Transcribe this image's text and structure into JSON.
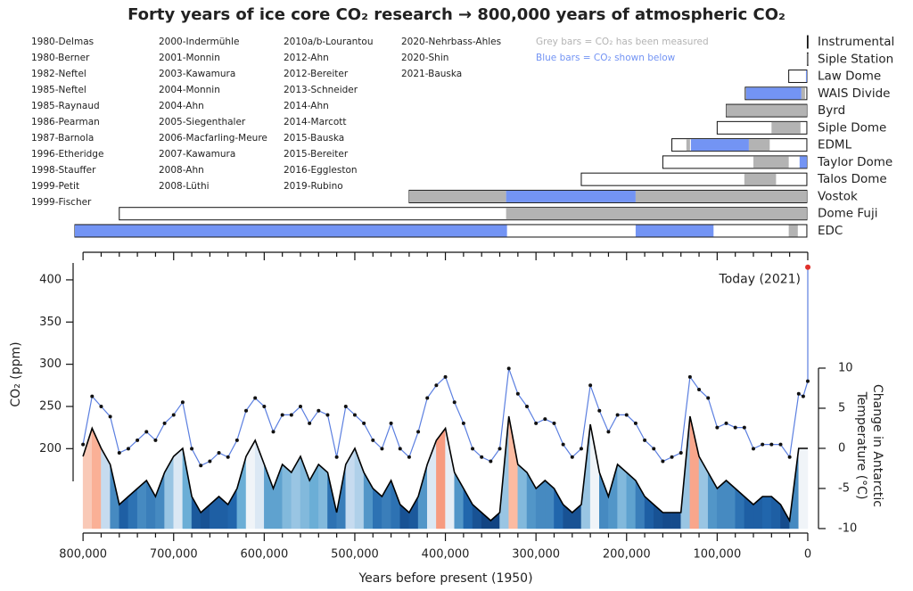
{
  "chart_data": {
    "type": "line",
    "title": "Forty years of ice core CO₂ research → 800,000 years of atmospheric CO₂",
    "references": [
      [
        "1980-Delmas",
        "1980-Berner",
        "1982-Neftel",
        "1985-Neftel",
        "1985-Raynaud",
        "1986-Pearman",
        "1987-Barnola",
        "1996-Etheridge",
        "1998-Stauffer",
        "1999-Petit",
        "1999-Fischer"
      ],
      [
        "2000-Indermühle",
        "2001-Monnin",
        "2003-Kawamura",
        "2004-Monnin",
        "2004-Ahn",
        "2005-Siegenthaler",
        "2006-Macfarling-Meure",
        "2007-Kawamura",
        "2008-Ahn",
        "2008-Lüthi"
      ],
      [
        "2010a/b-Lourantou",
        "2012-Ahn",
        "2012-Bereiter",
        "2013-Schneider",
        "2014-Ahn",
        "2014-Marcott",
        "2015-Bauska",
        "2015-Bereiter",
        "2016-Eggleston",
        "2019-Rubino"
      ],
      [
        "2020-Nehrbass-Ahles",
        "2020-Shin",
        "2021-Bauska"
      ]
    ],
    "bar_legend": [
      {
        "text": "Grey bars = CO₂ has been measured",
        "color": "#b3b3b3"
      },
      {
        "text": "Blue bars = CO₂ shown below",
        "color": "#7394f4"
      }
    ],
    "cores": [
      {
        "name": "Instrumental",
        "span": [
          -71,
          500
        ],
        "segments": []
      },
      {
        "name": "Siple Station",
        "span": [
          0,
          500
        ],
        "segments": [
          {
            "range": [
              0,
              500
            ],
            "color": "#b3b3b3"
          }
        ]
      },
      {
        "name": "Law Dome",
        "span": [
          1000,
          21000
        ],
        "segments": [
          {
            "range": [
              1000,
              2000
            ],
            "color": "#7394f4"
          }
        ]
      },
      {
        "name": "WAIS Divide",
        "span": [
          1000,
          69000
        ],
        "segments": [
          {
            "range": [
              7000,
              68000
            ],
            "color": "#7394f4"
          },
          {
            "range": [
              3000,
              7000
            ],
            "color": "#b3b3b3"
          }
        ]
      },
      {
        "name": "Byrd",
        "span": [
          1000,
          90000
        ],
        "segments": [
          {
            "range": [
              1000,
              90000
            ],
            "color": "#b3b3b3"
          }
        ]
      },
      {
        "name": "Siple Dome",
        "span": [
          1000,
          100000
        ],
        "segments": [
          {
            "range": [
              8000,
              40000
            ],
            "color": "#b3b3b3"
          }
        ]
      },
      {
        "name": "EDML",
        "span": [
          1000,
          150000
        ],
        "segments": [
          {
            "range": [
              130000,
              134000
            ],
            "color": "#b3b3b3"
          },
          {
            "range": [
              65000,
              129000
            ],
            "color": "#7394f4"
          },
          {
            "range": [
              42000,
              65000
            ],
            "color": "#b3b3b3"
          }
        ]
      },
      {
        "name": "Taylor Dome",
        "span": [
          1000,
          160000
        ],
        "segments": [
          {
            "range": [
              21000,
              60000
            ],
            "color": "#b3b3b3"
          },
          {
            "range": [
              1000,
              9000
            ],
            "color": "#7394f4"
          }
        ]
      },
      {
        "name": "Talos Dome",
        "span": [
          1000,
          250000
        ],
        "segments": [
          {
            "range": [
              35000,
              70000
            ],
            "color": "#b3b3b3"
          }
        ]
      },
      {
        "name": "Vostok",
        "span": [
          1000,
          440000
        ],
        "segments": [
          {
            "range": [
              333000,
              440000
            ],
            "color": "#b3b3b3"
          },
          {
            "range": [
              190000,
              333000
            ],
            "color": "#7394f4"
          },
          {
            "range": [
              1000,
              190000
            ],
            "color": "#b3b3b3"
          }
        ]
      },
      {
        "name": "Dome Fuji",
        "span": [
          1000,
          760000
        ],
        "segments": [
          {
            "range": [
              1000,
              333000
            ],
            "color": "#b3b3b3"
          }
        ]
      },
      {
        "name": "EDC",
        "span": [
          1000,
          809000
        ],
        "segments": [
          {
            "range": [
              332000,
              809000
            ],
            "color": "#7394f4"
          },
          {
            "range": [
              104000,
              190000
            ],
            "color": "#7394f4"
          },
          {
            "range": [
              11000,
              21000
            ],
            "color": "#b3b3b3"
          }
        ]
      }
    ],
    "xlabel": "Years before present (1950)",
    "ylabel": "CO₂ (ppm)",
    "y2label": [
      "Change in Antarctic",
      "Temperature (°C)"
    ],
    "annotation": {
      "text": "Today (2021)",
      "color": "#e0302a"
    },
    "xlim": [
      809000,
      -2000
    ],
    "xticks": [
      {
        "value": 800000,
        "label": "800,000"
      },
      {
        "value": 700000,
        "label": "700,000"
      },
      {
        "value": 600000,
        "label": "600,000"
      },
      {
        "value": 500000,
        "label": "500,000"
      },
      {
        "value": 400000,
        "label": "400,000"
      },
      {
        "value": 300000,
        "label": "300,000"
      },
      {
        "value": 200000,
        "label": "200,000"
      },
      {
        "value": 100000,
        "label": "100,000"
      },
      0
    ],
    "xminorticks": [
      780000,
      760000,
      740000,
      720000,
      680000,
      660000,
      640000,
      620000,
      580000,
      560000,
      540000,
      520000,
      480000,
      460000,
      440000,
      420000,
      380000,
      360000,
      340000,
      320000,
      280000,
      260000,
      240000,
      220000,
      180000,
      160000,
      140000,
      120000,
      80000,
      60000,
      40000,
      20000
    ],
    "ylim": [
      100,
      420
    ],
    "yticks": [
      200,
      250,
      300,
      350,
      400
    ],
    "y2lim": [
      -10.56,
      23.11
    ],
    "y2ticks": [
      -10,
      -5,
      0,
      5,
      10
    ],
    "x": [
      800000,
      790000,
      780000,
      770000,
      760000,
      750000,
      740000,
      730000,
      720000,
      710000,
      700000,
      690000,
      680000,
      670000,
      660000,
      650000,
      640000,
      630000,
      620000,
      610000,
      600000,
      590000,
      580000,
      570000,
      560000,
      550000,
      540000,
      530000,
      520000,
      510000,
      500000,
      490000,
      480000,
      470000,
      460000,
      450000,
      440000,
      430000,
      420000,
      410000,
      400000,
      390000,
      380000,
      370000,
      360000,
      350000,
      340000,
      330000,
      320000,
      310000,
      300000,
      290000,
      280000,
      270000,
      260000,
      250000,
      240000,
      230000,
      220000,
      210000,
      200000,
      190000,
      180000,
      170000,
      160000,
      150000,
      140000,
      130000,
      120000,
      110000,
      100000,
      90000,
      80000,
      70000,
      60000,
      50000,
      40000,
      30000,
      20000,
      10000,
      5000,
      0,
      -71
    ],
    "series": [
      {
        "color": "#5b7fe0",
        "marker_color": "#111111",
        "values": [
          205,
          262,
          250,
          238,
          195,
          200,
          210,
          220,
          210,
          230,
          240,
          255,
          200,
          180,
          185,
          195,
          190,
          210,
          245,
          260,
          250,
          220,
          240,
          240,
          250,
          230,
          245,
          240,
          190,
          250,
          240,
          230,
          210,
          200,
          230,
          200,
          190,
          220,
          260,
          275,
          285,
          255,
          230,
          200,
          190,
          185,
          200,
          295,
          265,
          250,
          230,
          235,
          230,
          205,
          190,
          200,
          275,
          245,
          220,
          240,
          240,
          230,
          210,
          200,
          185,
          190,
          195,
          285,
          270,
          260,
          225,
          230,
          225,
          225,
          200,
          205,
          205,
          205,
          190,
          265,
          262,
          280,
          415
        ]
      },
      {
        "axis": "y2",
        "color": "#000000",
        "values": [
          -1,
          2.5,
          0,
          -2,
          -7,
          -6,
          -5,
          -4,
          -6,
          -3,
          -1,
          0,
          -6,
          -8,
          -7,
          -6,
          -7,
          -5,
          -1,
          1,
          -2,
          -5,
          -2,
          -3,
          -1,
          -4,
          -2,
          -3,
          -8,
          -2,
          0,
          -3,
          -5,
          -6,
          -4,
          -7,
          -8,
          -6,
          -2,
          1,
          2.5,
          -3,
          -5,
          -7,
          -8,
          -9,
          -8,
          4,
          -2,
          -3,
          -5,
          -4,
          -5,
          -7,
          -8,
          -7,
          3,
          -3,
          -6,
          -2,
          -3,
          -4,
          -6,
          -7,
          -8,
          -8,
          -8,
          4,
          -1,
          -3,
          -5,
          -4,
          -5,
          -6,
          -7,
          -6,
          -6,
          -7,
          -9,
          0,
          0,
          0,
          null
        ]
      }
    ]
  }
}
